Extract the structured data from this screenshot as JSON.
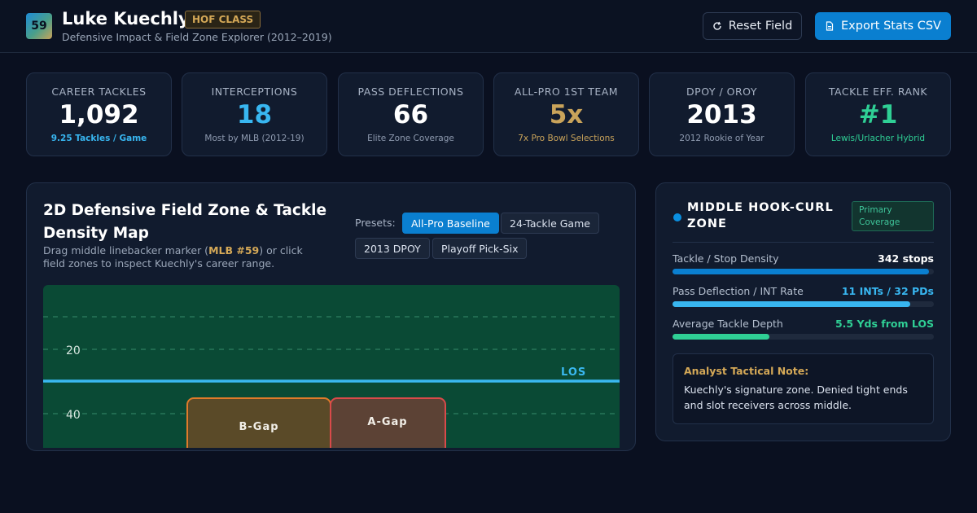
{
  "header": {
    "logo_number": "59",
    "title": "Luke Kuechly",
    "badge": "HOF CLASS",
    "subtitle": "Defensive Impact & Field Zone Explorer (2012–2019)",
    "reset_label": "Reset Field",
    "reset_icon": "refresh-icon",
    "export_label": "Export Stats CSV",
    "export_icon": "file-icon"
  },
  "stats": [
    {
      "label": "CAREER TACKLES",
      "value": "1,092",
      "sub": "9.25 Tackles / Game",
      "value_color": "#ffffff",
      "sub_color": "#38b6f0"
    },
    {
      "label": "INTERCEPTIONS",
      "value": "18",
      "sub": "Most by MLB (2012-19)",
      "value_color": "#38b6f0",
      "sub_color": "#8f9bb0"
    },
    {
      "label": "PASS DEFLECTIONS",
      "value": "66",
      "sub": "Elite Zone Coverage",
      "value_color": "#ffffff",
      "sub_color": "#8f9bb0"
    },
    {
      "label": "ALL-PRO 1ST TEAM",
      "value": "5x",
      "sub": "7x Pro Bowl Selections",
      "value_color": "#c9a35a",
      "sub_color": "#c9a35a"
    },
    {
      "label": "DPOY / OROY",
      "value": "2013",
      "sub": "2012 Rookie of Year",
      "value_color": "#ffffff",
      "sub_color": "#8f9bb0"
    },
    {
      "label": "TACKLE EFF. RANK",
      "value": "#1",
      "sub": "Lewis/Urlacher Hybrid",
      "value_color": "#2fcf95",
      "sub_color": "#2fcf95"
    }
  ],
  "map": {
    "title": "2D Defensive Field Zone & Tackle Density Map",
    "desc_before": "Drag middle linebacker marker (",
    "desc_highlight": "MLB #59",
    "desc_after": ") or click field zones to inspect Kuechly's career range.",
    "presets_label": "Presets:",
    "presets": [
      "All-Pro Baseline",
      "24-Tackle Game",
      "2013 DPOY",
      "Playoff Pick-Six"
    ],
    "active_preset": "All-Pro Baseline",
    "yard_labels": [
      "20",
      "40"
    ],
    "los_label": "LOS",
    "zones": [
      "B-Gap",
      "A-Gap"
    ],
    "colors": {
      "field": "#0a4a35",
      "los": "#3ab8f0",
      "b_gap": "#e07a2a",
      "a_gap": "#d94a4a"
    }
  },
  "zone_panel": {
    "title": "MIDDLE HOOK-CURL ZONE",
    "badge": "Primary Coverage",
    "metrics": [
      {
        "label": "Tackle / Stop Density",
        "value": "342 stops",
        "fill": 0.98,
        "color": "#0a7fd0",
        "value_color": "#ffffff"
      },
      {
        "label": "Pass Deflection / INT Rate",
        "value": "11 INTs / 32 PDs",
        "fill": 0.91,
        "color": "#38b6f0",
        "value_color": "#38b6f0"
      },
      {
        "label": "Average Tackle Depth",
        "value": "5.5 Yds from LOS",
        "fill": 0.37,
        "color": "#2fcf95",
        "value_color": "#2fcf95"
      }
    ],
    "note_title": "Analyst Tactical Note:",
    "note_text": "Kuechly's signature zone. Denied tight ends and slot receivers across middle."
  }
}
